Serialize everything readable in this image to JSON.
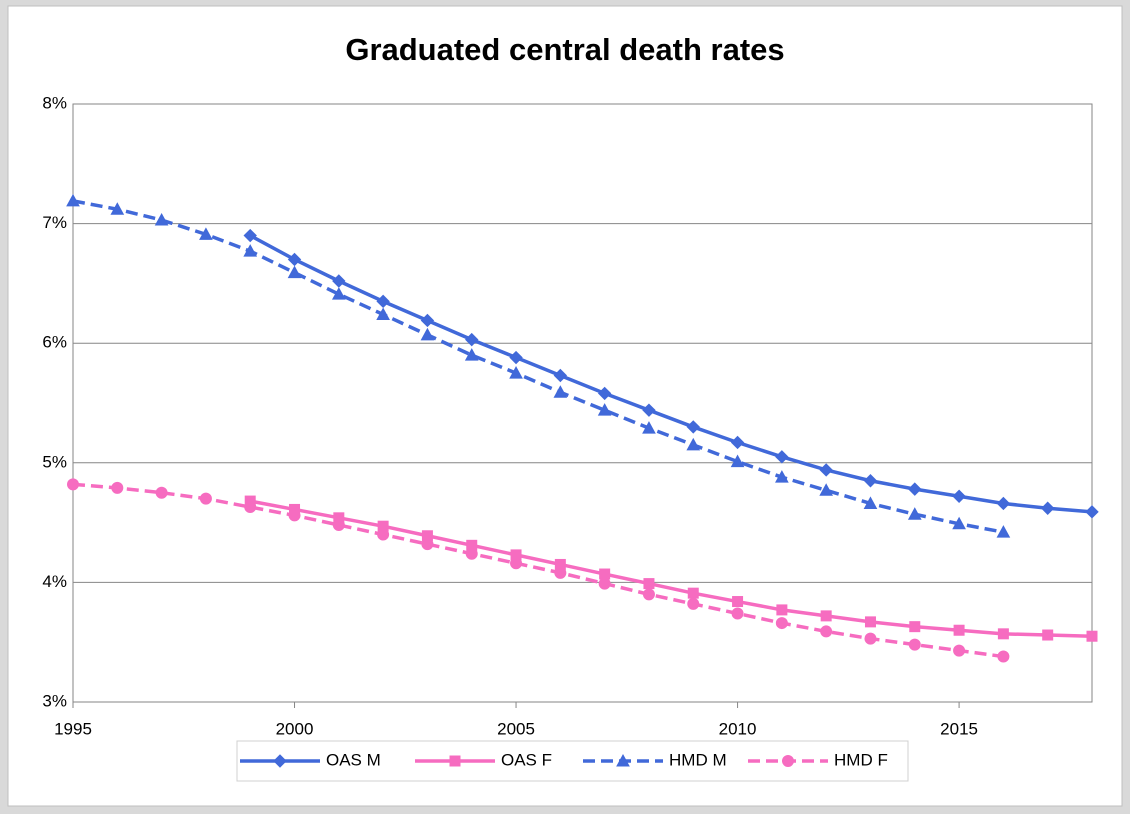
{
  "chart_data": {
    "type": "line",
    "title": "Graduated central death rates",
    "x": [
      1995,
      1996,
      1997,
      1998,
      1999,
      2000,
      2001,
      2002,
      2003,
      2004,
      2005,
      2006,
      2007,
      2008,
      2009,
      2010,
      2011,
      2012,
      2013,
      2014,
      2015,
      2016,
      2017,
      2018
    ],
    "xlim": [
      1995,
      2018
    ],
    "xticks": [
      1995,
      2000,
      2005,
      2010,
      2015
    ],
    "ylim": [
      3,
      8
    ],
    "yticks": [
      {
        "value": 3,
        "label": "3%"
      },
      {
        "value": 4,
        "label": "4%"
      },
      {
        "value": 5,
        "label": "5%"
      },
      {
        "value": 6,
        "label": "6%"
      },
      {
        "value": 7,
        "label": "7%"
      },
      {
        "value": 8,
        "label": "8%"
      }
    ],
    "grid": true,
    "legend": "bottom",
    "series": [
      {
        "name": "OAS M",
        "color": "#4169d9",
        "marker": "diamond",
        "dash": "solid",
        "values": [
          null,
          null,
          null,
          null,
          6.9,
          6.7,
          6.52,
          6.35,
          6.19,
          6.03,
          5.88,
          5.73,
          5.58,
          5.44,
          5.3,
          5.17,
          5.05,
          4.94,
          4.85,
          4.78,
          4.72,
          4.66,
          4.62,
          4.59
        ]
      },
      {
        "name": "OAS F",
        "color": "#f66cc0",
        "marker": "square",
        "dash": "solid",
        "values": [
          null,
          null,
          null,
          null,
          4.68,
          4.61,
          4.54,
          4.47,
          4.39,
          4.31,
          4.23,
          4.15,
          4.07,
          3.99,
          3.91,
          3.84,
          3.77,
          3.72,
          3.67,
          3.63,
          3.6,
          3.57,
          3.56,
          3.55
        ]
      },
      {
        "name": "HMD M",
        "color": "#4169d9",
        "marker": "triangle",
        "dash": "dashed",
        "values": [
          7.19,
          7.12,
          7.03,
          6.91,
          6.77,
          6.59,
          6.41,
          6.24,
          6.07,
          5.9,
          5.75,
          5.59,
          5.44,
          5.29,
          5.15,
          5.01,
          4.88,
          4.77,
          4.66,
          4.57,
          4.49,
          4.42,
          null,
          null
        ]
      },
      {
        "name": "HMD F",
        "color": "#f66cc0",
        "marker": "circle",
        "dash": "dashed",
        "values": [
          4.82,
          4.79,
          4.75,
          4.7,
          4.63,
          4.56,
          4.48,
          4.4,
          4.32,
          4.24,
          4.16,
          4.08,
          3.99,
          3.9,
          3.82,
          3.74,
          3.66,
          3.59,
          3.53,
          3.48,
          3.43,
          3.38,
          null,
          null
        ]
      }
    ]
  }
}
